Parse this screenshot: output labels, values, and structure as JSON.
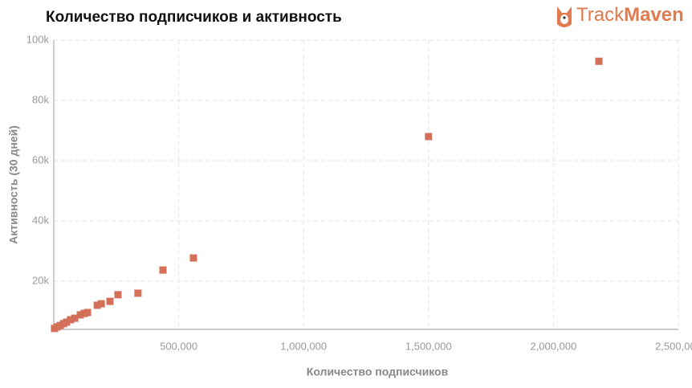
{
  "chart_data": {
    "type": "scatter",
    "title": "Количество подписчиков и активность",
    "logo": {
      "part1": "Track",
      "part2": "Maven"
    },
    "x_label": "Количество подписчиков",
    "y_label": "Активность (30 дней)",
    "color": "#d4705a",
    "grid": true,
    "xlim": [
      0,
      2500000
    ],
    "ylim": [
      4000,
      100000
    ],
    "xticks": [
      {
        "value": 500000,
        "label": "500,000"
      },
      {
        "value": 1000000,
        "label": "1,000,000"
      },
      {
        "value": 1500000,
        "label": "1,500,000"
      },
      {
        "value": 2000000,
        "label": "2,000,000"
      },
      {
        "value": 2500000,
        "label": "2,500,000"
      }
    ],
    "yticks": [
      {
        "value": 20000,
        "label": "20k"
      },
      {
        "value": 40000,
        "label": "40k"
      },
      {
        "value": 60000,
        "label": "60k"
      },
      {
        "value": 80000,
        "label": "80k"
      },
      {
        "value": 100000,
        "label": "100k"
      }
    ],
    "x": [
      2182000,
      1500000,
      559000,
      437000,
      337000,
      257000,
      225000,
      190000,
      174000,
      135000,
      122000,
      106000,
      84000,
      67000,
      51000,
      39000,
      26000,
      13000,
      3000
    ],
    "values": [
      93000,
      68000,
      27700,
      23700,
      16000,
      15500,
      13300,
      12500,
      12000,
      9600,
      9300,
      8800,
      7700,
      7200,
      6400,
      5900,
      5300,
      4800,
      4300
    ]
  }
}
